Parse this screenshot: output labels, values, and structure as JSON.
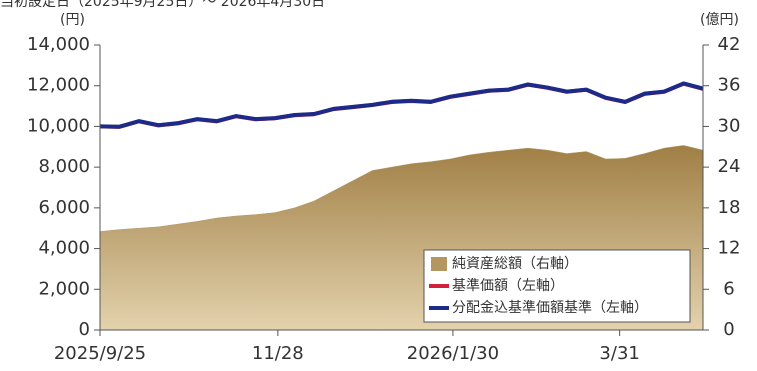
{
  "chart_data": {
    "type": "line",
    "title": "当初設定日（2025年9月25日）～ 2026年4月30日",
    "y_unit": "(円)",
    "y2_unit": "(億円)",
    "x": [
      "2025-09-25",
      "2025-10-02",
      "2025-10-09",
      "2025-10-16",
      "2025-10-23",
      "2025-10-30",
      "2025-11-06",
      "2025-11-13",
      "2025-11-20",
      "2025-11-27",
      "2025-12-04",
      "2025-12-11",
      "2025-12-18",
      "2025-12-25",
      "2026-01-01",
      "2026-01-08",
      "2026-01-15",
      "2026-01-22",
      "2026-01-29",
      "2026-02-05",
      "2026-02-12",
      "2026-02-19",
      "2026-02-26",
      "2026-03-05",
      "2026-03-12",
      "2026-03-19",
      "2026-03-26",
      "2026-04-02",
      "2026-04-09",
      "2026-04-16",
      "2026-04-23",
      "2026-04-30"
    ],
    "xlim": [
      "2025-09-25",
      "2026-04-30"
    ],
    "xticks": [
      {
        "value": "2025-09-25",
        "label": "2025/9/25"
      },
      {
        "value": "2025-11-28",
        "label": "11/28"
      },
      {
        "value": "2026-01-30",
        "label": "2026/1/30"
      },
      {
        "value": "2026-03-31",
        "label": "3/31"
      }
    ],
    "ylim": [
      0,
      14000
    ],
    "yticks": [
      0,
      {
        "value": 2000,
        "label": "2,000"
      },
      {
        "value": 4000,
        "label": "4,000"
      },
      {
        "value": 6000,
        "label": "6,000"
      },
      {
        "value": 8000,
        "label": "8,000"
      },
      {
        "value": 10000,
        "label": "10,000"
      },
      {
        "value": 12000,
        "label": "12,000"
      },
      {
        "value": 14000,
        "label": "14,000"
      }
    ],
    "y2lim": [
      0,
      42
    ],
    "y2ticks": [
      0,
      6,
      12,
      18,
      24,
      30,
      36,
      42
    ],
    "series": [
      {
        "name": "純資産総額（右軸）",
        "type": "area",
        "axis": "y2",
        "color": "#b39660",
        "values": [
          14.5,
          14.8,
          15.0,
          15.2,
          15.6,
          16.0,
          16.5,
          16.8,
          17.0,
          17.3,
          18.0,
          19.0,
          20.5,
          22.0,
          23.5,
          24.0,
          24.5,
          24.8,
          25.2,
          25.8,
          26.2,
          26.5,
          26.8,
          26.5,
          26.0,
          26.3,
          25.2,
          25.3,
          26.0,
          26.8,
          27.2,
          26.5
        ]
      },
      {
        "name": "基準価額（左軸）",
        "type": "line",
        "color": "#d0203a",
        "values": [
          10000,
          9980,
          10250,
          10050,
          10150,
          10350,
          10250,
          10500,
          10350,
          10400,
          10550,
          10600,
          10850,
          10950,
          11050,
          11200,
          11250,
          11200,
          11450,
          11600,
          11750,
          11800,
          12050,
          11900,
          11700,
          11800,
          11400,
          11200,
          11600,
          11700,
          12100,
          11850
        ]
      },
      {
        "name": "分配金込基準価額基準（左軸）",
        "type": "line",
        "color": "#1c2a8a",
        "values": [
          10000,
          9985,
          10260,
          10060,
          10160,
          10360,
          10260,
          10510,
          10360,
          10410,
          10560,
          10610,
          10860,
          10960,
          11060,
          11210,
          11260,
          11210,
          11460,
          11610,
          11760,
          11810,
          12060,
          11910,
          11710,
          11810,
          11410,
          11210,
          11610,
          11710,
          12110,
          11860
        ]
      }
    ]
  }
}
